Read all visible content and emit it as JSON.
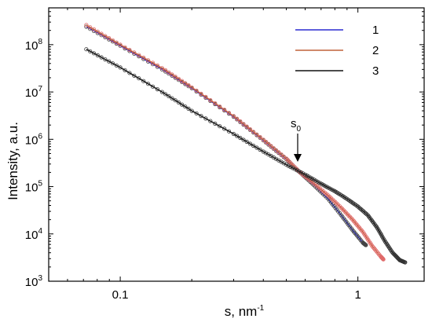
{
  "chart_data": {
    "type": "scatter",
    "title": "",
    "xlabel": "s, nm",
    "xlabel_exponent": "-1",
    "ylabel": "Intensity, a.u.",
    "xscale": "log",
    "yscale": "log",
    "xlim": [
      0.05,
      1.9
    ],
    "ylim": [
      1000,
      600000000
    ],
    "x_ticks": [
      {
        "value": 0.1,
        "label": "0.1"
      },
      {
        "value": 1,
        "label": "1"
      }
    ],
    "y_ticks": [
      {
        "value": 1000,
        "base": "10",
        "exp": "3"
      },
      {
        "value": 10000,
        "base": "10",
        "exp": "4"
      },
      {
        "value": 100000,
        "base": "10",
        "exp": "5"
      },
      {
        "value": 1000000,
        "base": "10",
        "exp": "6"
      },
      {
        "value": 10000000,
        "base": "10",
        "exp": "7"
      },
      {
        "value": 100000000,
        "base": "10",
        "exp": "8"
      }
    ],
    "grid": false,
    "legend_position": "top-right",
    "series": [
      {
        "name": "1",
        "color": "#2b2bd0",
        "marker_color": "#444444",
        "x": [
          0.072,
          0.1,
          0.15,
          0.2,
          0.3,
          0.4,
          0.5,
          0.57,
          0.65,
          0.75,
          0.85,
          0.95,
          1.05,
          1.08
        ],
        "y": [
          240000000,
          95000000,
          30000000,
          12000000,
          3000000,
          950000,
          380000,
          200000,
          110000,
          55000,
          25000,
          12000,
          6500,
          5800
        ]
      },
      {
        "name": "2",
        "color": "#c0623a",
        "marker_color": "#e06a6a",
        "x": [
          0.072,
          0.1,
          0.15,
          0.2,
          0.3,
          0.4,
          0.5,
          0.57,
          0.65,
          0.75,
          0.85,
          0.95,
          1.05,
          1.15,
          1.25,
          1.28
        ],
        "y": [
          260000000,
          100000000,
          32000000,
          12500000,
          3100000,
          980000,
          390000,
          200000,
          120000,
          65000,
          36000,
          20000,
          11000,
          5500,
          3300,
          2900
        ]
      },
      {
        "name": "3",
        "color": "#111111",
        "marker_color": "#333333",
        "x": [
          0.072,
          0.1,
          0.15,
          0.2,
          0.3,
          0.4,
          0.5,
          0.6,
          0.7,
          0.8,
          0.9,
          1.0,
          1.1,
          1.2,
          1.3,
          1.4,
          1.5,
          1.58
        ],
        "y": [
          80000000,
          33000000,
          10000000,
          4000000,
          1300000,
          550000,
          290000,
          180000,
          115000,
          80000,
          55000,
          38000,
          25000,
          14000,
          7000,
          4000,
          2800,
          2500
        ]
      }
    ],
    "annotations": [
      {
        "text": "s",
        "subscript": "0",
        "x": 0.57,
        "y": 200000,
        "arrow": true
      }
    ]
  }
}
